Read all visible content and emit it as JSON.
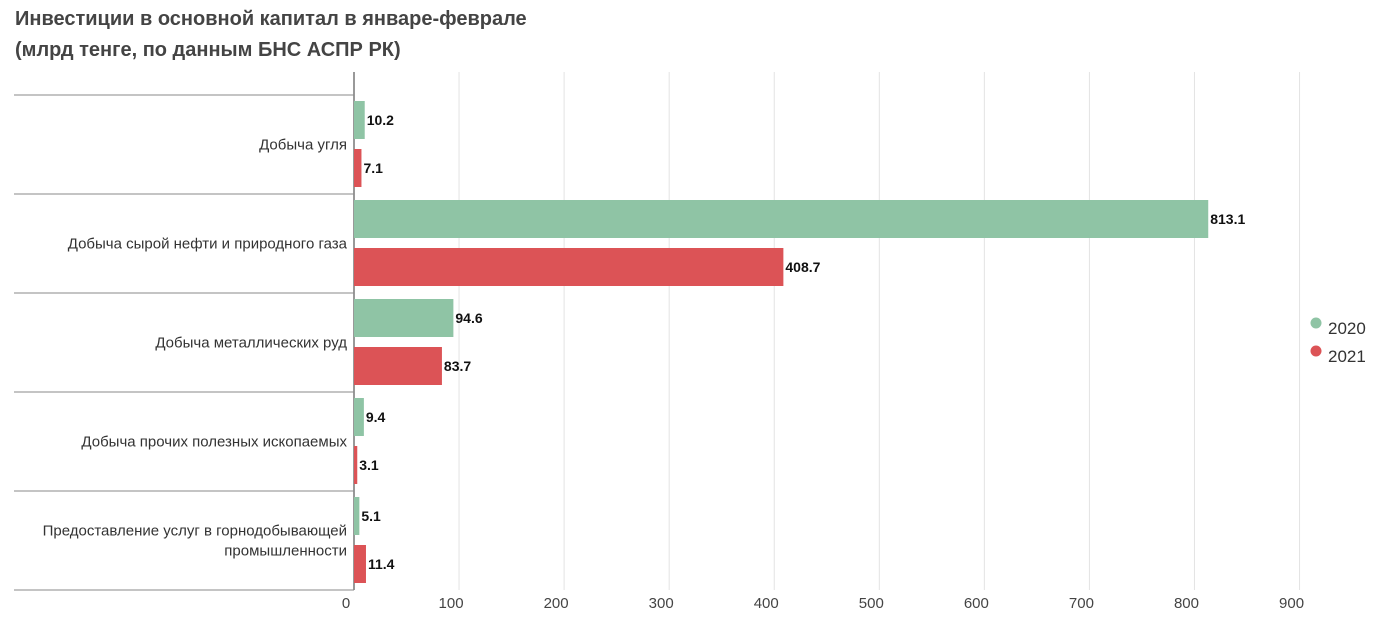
{
  "chart_data": {
    "type": "bar",
    "orientation": "horizontal",
    "title": "Инвестиции в основной капитал в январе-феврале",
    "subtitle": "(млрд тенге, по данным БНС АСПР РК)",
    "categories": [
      [
        "Добыча угля"
      ],
      [
        "Добыча сырой нефти и природного газа"
      ],
      [
        "Добыча металлических руд"
      ],
      [
        "Добыча прочих полезных ископаемых"
      ],
      [
        "Предоставление услуг в горнодобывающей",
        "промышленности"
      ]
    ],
    "series": [
      {
        "name": "2020",
        "color": "#8fc4a5",
        "values": [
          10.2,
          813.1,
          94.6,
          9.4,
          5.1
        ]
      },
      {
        "name": "2021",
        "color": "#dc5356",
        "values": [
          7.1,
          408.7,
          83.7,
          3.1,
          11.4
        ]
      }
    ],
    "x_ticks": [
      0,
      100,
      200,
      300,
      400,
      500,
      600,
      700,
      800,
      900
    ],
    "xlim": [
      0,
      900
    ],
    "grid": true,
    "legend_position": "right"
  }
}
